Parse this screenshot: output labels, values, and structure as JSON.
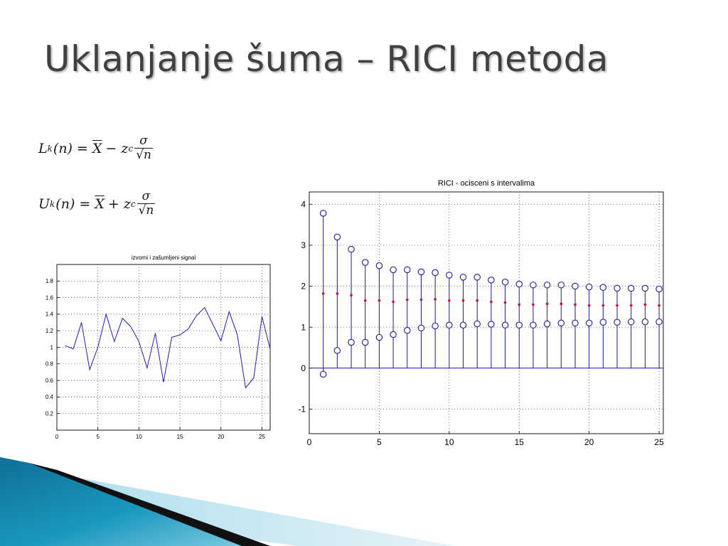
{
  "slide": {
    "title": "Uklanjanje šuma – RICI metoda"
  },
  "formulas": {
    "lower": {
      "lhs": "L",
      "sub": "k",
      "arg": "(n) =",
      "mean": "X",
      "op": "− z",
      "opsub": "c",
      "num": "σ",
      "den": "√n"
    },
    "upper": {
      "lhs": "U",
      "sub": "k",
      "arg": "(n) =",
      "mean": "X",
      "op": "+ z",
      "opsub": "c",
      "num": "σ",
      "den": "√n"
    }
  },
  "colors": {
    "series": "#1c1cc8",
    "stem": "#1c1c9c",
    "midpoint": "#cc1030",
    "grid": "#000000",
    "title_text": "#404040",
    "deco_blue": "#1a8fb4"
  },
  "chart_data": [
    {
      "type": "line",
      "title": "izvorni i zašumljeni signal",
      "xlabel": "",
      "ylabel": "",
      "xlim": [
        0,
        26
      ],
      "ylim": [
        0,
        2
      ],
      "xticks": [
        0,
        5,
        10,
        15,
        20,
        25
      ],
      "xtick_labels": [
        "0",
        "5",
        "10",
        "15",
        "20",
        "25"
      ],
      "yticks": [
        0.2,
        0.4,
        0.6,
        0.8,
        1,
        1.2,
        1.4,
        1.6,
        1.8
      ],
      "ytick_labels": [
        "0.2",
        "0.4",
        "0.6",
        "0.8",
        "1",
        "1.2",
        "1.4",
        "1.6",
        "1.8"
      ],
      "grid": true,
      "series": [
        {
          "x": [
            1,
            2,
            3,
            4,
            5,
            6,
            7,
            8,
            9,
            10,
            11,
            12,
            13,
            14,
            15,
            16,
            17,
            18,
            19,
            20,
            21,
            22,
            23,
            24,
            25,
            26
          ],
          "values": [
            1.02,
            0.98,
            1.3,
            0.73,
            1.0,
            1.4,
            1.07,
            1.35,
            1.25,
            1.07,
            0.75,
            1.17,
            0.58,
            1.12,
            1.15,
            1.22,
            1.38,
            1.48,
            1.28,
            1.08,
            1.43,
            1.15,
            0.51,
            0.63,
            1.37,
            0.98
          ]
        }
      ]
    },
    {
      "type": "scatter",
      "subtype": "stem",
      "title": "RICI - ocisceni s intervalima",
      "xlabel": "",
      "ylabel": "",
      "xlim": [
        0,
        25.3
      ],
      "ylim": [
        -1.6,
        4.3
      ],
      "xticks": [
        0,
        5,
        10,
        15,
        20,
        25
      ],
      "xtick_labels": [
        "0",
        "5",
        "10",
        "15",
        "20",
        "25"
      ],
      "yticks": [
        -1,
        0,
        1,
        2,
        3,
        4
      ],
      "ytick_labels": [
        "-1",
        "0",
        "1",
        "2",
        "3",
        "4"
      ],
      "grid": true,
      "x": [
        1,
        2,
        3,
        4,
        5,
        6,
        7,
        8,
        9,
        10,
        11,
        12,
        13,
        14,
        15,
        16,
        17,
        18,
        19,
        20,
        21,
        22,
        23,
        24,
        25
      ],
      "series": [
        {
          "role": "upper",
          "marker": "circle",
          "values": [
            3.78,
            3.2,
            2.9,
            2.58,
            2.5,
            2.4,
            2.4,
            2.35,
            2.33,
            2.27,
            2.22,
            2.22,
            2.15,
            2.1,
            2.05,
            2.03,
            2.03,
            2.03,
            2.0,
            1.98,
            1.97,
            1.95,
            1.95,
            1.95,
            1.93
          ]
        },
        {
          "role": "estimate",
          "marker": "dot",
          "values": [
            1.82,
            1.82,
            1.78,
            1.65,
            1.65,
            1.62,
            1.67,
            1.67,
            1.68,
            1.65,
            1.65,
            1.65,
            1.62,
            1.6,
            1.55,
            1.55,
            1.57,
            1.57,
            1.55,
            1.53,
            1.53,
            1.53,
            1.53,
            1.55,
            1.53
          ]
        },
        {
          "role": "lower",
          "marker": "circle",
          "values": [
            -0.15,
            0.43,
            0.63,
            0.63,
            0.75,
            0.82,
            0.92,
            0.98,
            1.03,
            1.05,
            1.05,
            1.08,
            1.07,
            1.05,
            1.05,
            1.05,
            1.08,
            1.1,
            1.1,
            1.1,
            1.12,
            1.12,
            1.13,
            1.13,
            1.13
          ]
        }
      ]
    }
  ]
}
